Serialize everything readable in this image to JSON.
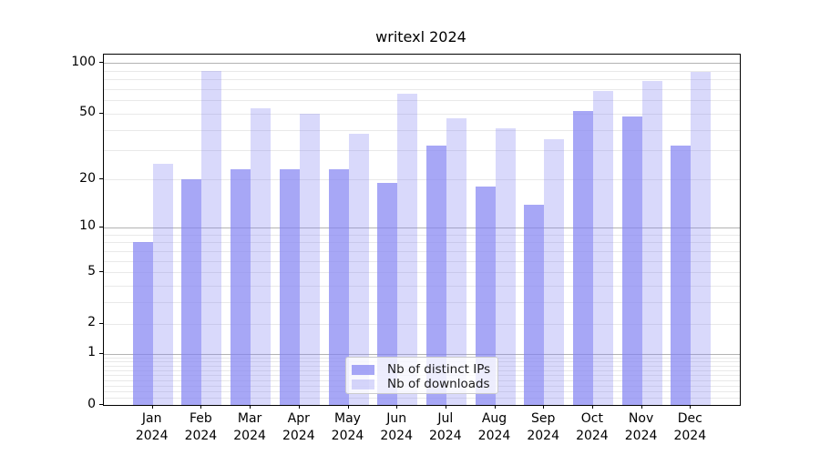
{
  "chart_data": {
    "type": "bar",
    "title": "writexl 2024",
    "categories": [
      "Jan 2024",
      "Feb 2024",
      "Mar 2024",
      "Apr 2024",
      "May 2024",
      "Jun 2024",
      "Jul 2024",
      "Aug 2024",
      "Sep 2024",
      "Oct 2024",
      "Nov 2024",
      "Dec 2024"
    ],
    "series": [
      {
        "name": "Nb of distinct IPs",
        "values": [
          8,
          20,
          23,
          23,
          23,
          19,
          32,
          18,
          14,
          52,
          48,
          32
        ],
        "color": "rgba(130,130,242,0.70)"
      },
      {
        "name": "Nb of downloads",
        "values": [
          25,
          90,
          54,
          50,
          38,
          66,
          47,
          41,
          35,
          68,
          78,
          89
        ],
        "color": "rgba(130,130,242,0.30)"
      }
    ],
    "xlabel": "",
    "ylabel": "",
    "y_scale": "log1p",
    "ylim": [
      0,
      112
    ],
    "y_ticks": [
      100,
      50,
      20,
      10,
      5,
      2,
      1,
      0
    ],
    "grid": true,
    "legend_position": "lower center",
    "colors": {
      "bar_base": "#8282f2",
      "grid_major": "#b3b3b3",
      "grid_minor": "#e9e9e9",
      "axis": "#000000"
    }
  }
}
